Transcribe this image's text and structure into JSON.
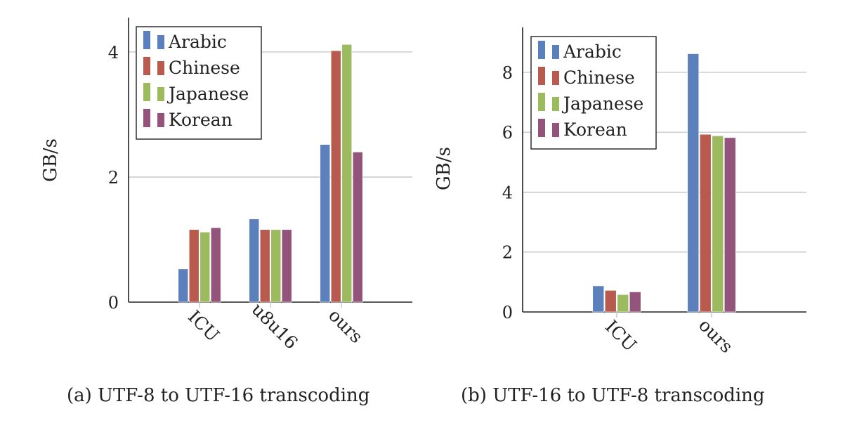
{
  "colors": {
    "Arabic": "#5b80bb",
    "Chinese": "#b85a4e",
    "Japanese": "#9cbb5e",
    "Korean": "#94537a",
    "grid": "#bdbdbd",
    "axis": "#222222"
  },
  "chart_data": [
    {
      "type": "bar",
      "caption": "(a) UTF-8 to UTF-16 transcoding",
      "ylabel": "GB/s",
      "xlabel": "",
      "ylim": [
        0,
        4.55
      ],
      "yticks": [
        0,
        2,
        4
      ],
      "grid": "horizontal",
      "legend": "top-left",
      "categories": [
        "ICU",
        "u8u16",
        "ours"
      ],
      "series": [
        {
          "name": "Arabic",
          "values": [
            0.53,
            1.33,
            2.52
          ]
        },
        {
          "name": "Chinese",
          "values": [
            1.16,
            1.16,
            4.02
          ]
        },
        {
          "name": "Japanese",
          "values": [
            1.12,
            1.16,
            4.12
          ]
        },
        {
          "name": "Korean",
          "values": [
            1.19,
            1.16,
            2.4
          ]
        }
      ]
    },
    {
      "type": "bar",
      "caption": "(b) UTF-16 to UTF-8 transcoding",
      "ylabel": "GB/s",
      "xlabel": "",
      "ylim": [
        0,
        9.5
      ],
      "yticks": [
        0,
        2,
        4,
        6,
        8
      ],
      "grid": "horizontal",
      "legend": "top-left",
      "categories": [
        "ICU",
        "ours"
      ],
      "series": [
        {
          "name": "Arabic",
          "values": [
            0.87,
            8.62
          ]
        },
        {
          "name": "Chinese",
          "values": [
            0.72,
            5.93
          ]
        },
        {
          "name": "Japanese",
          "values": [
            0.58,
            5.88
          ]
        },
        {
          "name": "Korean",
          "values": [
            0.67,
            5.82
          ]
        }
      ]
    }
  ]
}
